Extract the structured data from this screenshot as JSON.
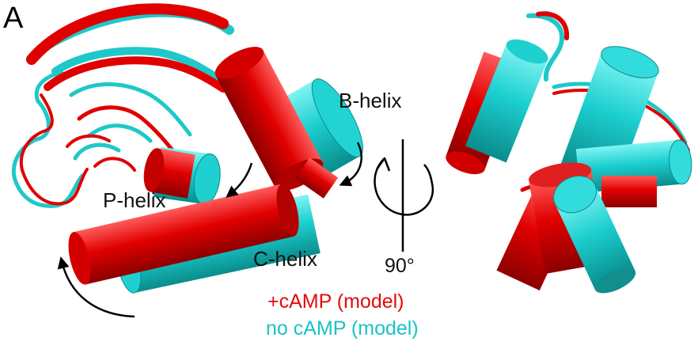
{
  "panel": {
    "letter": "A"
  },
  "labels": {
    "b_helix": "B-helix",
    "p_helix": "P-helix",
    "c_helix": "C-helix",
    "rotation": "90°"
  },
  "legend": {
    "with_camp": "+cAMP (model)",
    "without_camp": "no cAMP (model)"
  },
  "colors": {
    "with_camp": "#e30b0b",
    "without_camp": "#19c2c6"
  }
}
